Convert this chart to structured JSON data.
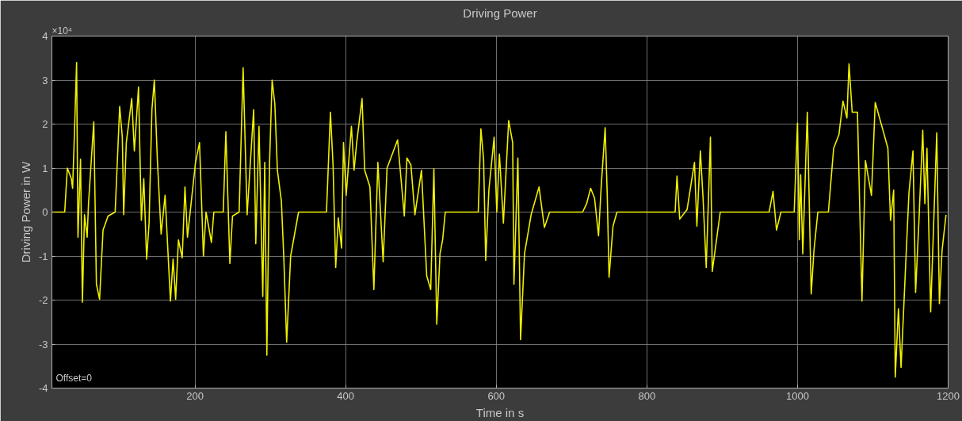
{
  "chart_data": {
    "type": "line",
    "title": "Driving Power",
    "xlabel": "Time in s",
    "ylabel": "Driving Power in W",
    "annotations": [
      "×10⁴",
      "Offset=0"
    ],
    "xlim": [
      10,
      1200
    ],
    "xticks": [
      200,
      400,
      600,
      800,
      1000,
      1200
    ],
    "ylim": [
      -4,
      4
    ],
    "yticks": [
      -4,
      -3,
      -2,
      -1,
      0,
      1,
      2,
      3,
      4
    ],
    "grid": true,
    "marker": "none",
    "line_style": "solid",
    "series": [
      {
        "color": "#f0f000",
        "x": [
          10,
          27,
          30.5,
          35.8,
          37.5,
          39.3,
          42.8,
          44.6,
          48,
          50.5,
          53.3,
          56.8,
          58.6,
          65.6,
          69.1,
          73.3,
          77.9,
          84.6,
          94,
          100,
          103.5,
          105.3,
          108.8,
          116,
          119.5,
          125,
          128.8,
          132,
          135.8,
          139,
          142.8,
          146,
          150,
          155,
          160.3,
          167.4,
          170.9,
          174.3,
          178,
          183,
          186.7,
          190,
          200.7,
          206,
          211.2,
          214.7,
          221.8,
          225,
          237.5,
          241,
          246.3,
          249.8,
          258.6,
          263.9,
          269.2,
          277.9,
          280.7,
          285,
          290,
          292.6,
          295.4,
          299,
          302.4,
          306,
          309.4,
          314.7,
          318,
          321.7,
          327,
          337.5,
          374.6,
          379.8,
          383.3,
          386.8,
          390.3,
          394.6,
          397.2,
          400.7,
          407.7,
          411.2,
          414.7,
          421.8,
          425.3,
          432.3,
          437.5,
          442.8,
          449.8,
          455,
          462,
          469,
          477.9,
          481.4,
          486.7,
          492,
          500.7,
          507.7,
          513,
          517.2,
          521,
          525.3,
          528.8,
          532.3,
          576.1,
          579.6,
          583.2,
          586,
          590.2,
          597.2,
          600.7,
          604.2,
          609.5,
          616.5,
          621.8,
          623.5,
          628.7,
          632.3,
          637.5,
          646.3,
          656.8,
          663.9,
          670.9,
          714.7,
          720,
          725.3,
          730.5,
          735.8,
          739.3,
          744.6,
          747.4,
          749.8,
          755,
          760.3,
          837.5,
          840,
          843.6,
          853.4,
          858.6,
          863.2,
          866.4,
          871,
          874.6,
          878.8,
          884.4,
          886.8,
          897.4,
          962.3,
          967.5,
          972.1,
          978,
          995.6,
          1000,
          1002.4,
          1004.2,
          1007,
          1013,
          1018.2,
          1021.8,
          1027,
          1041,
          1048,
          1055,
          1060.4,
          1065.6,
          1068.4,
          1072.6,
          1079.6,
          1085.6,
          1090.2,
          1098.2,
          1103.2,
          1113,
          1120,
          1123.5,
          1127.7,
          1129.8,
          1134,
          1137.5,
          1144.6,
          1148,
          1153.3,
          1156.8,
          1161.4,
          1166.3,
          1169.1,
          1171.9,
          1176.8,
          1184.9,
          1188.4,
          1191.9,
          1197.2
        ],
        "values": [
          0,
          0,
          1.0,
          0.76,
          0.54,
          1.45,
          3.4,
          -0.57,
          1.2,
          -2.05,
          -0.06,
          -0.57,
          0.19,
          2.05,
          -1.64,
          -1.98,
          -0.41,
          -0.09,
          0,
          2.4,
          1.7,
          -0.06,
          1.58,
          2.58,
          1.39,
          2.84,
          -0.19,
          0.76,
          -1.07,
          -0.25,
          2.33,
          3.0,
          1.2,
          -0.5,
          0.38,
          -2.02,
          -1.07,
          -1.98,
          -0.63,
          -1.04,
          0.57,
          -0.57,
          1.13,
          1.58,
          -1.0,
          0,
          -0.69,
          0,
          0,
          1.83,
          -1.17,
          -0.09,
          0,
          3.28,
          -0.06,
          2.33,
          -0.72,
          1.95,
          -1.92,
          1.13,
          -3.25,
          1.13,
          3.0,
          2.46,
          0.95,
          0.25,
          -1.07,
          -2.96,
          -1.0,
          0,
          0,
          2.27,
          1.07,
          -1.26,
          -0.13,
          -0.82,
          1.58,
          0.38,
          1.95,
          0.95,
          1.58,
          2.58,
          0.95,
          0.57,
          -1.76,
          1.13,
          -1.13,
          1.0,
          1.32,
          1.64,
          -0.09,
          1.23,
          1.07,
          -0.06,
          0.95,
          -1.45,
          -1.76,
          0.98,
          -2.55,
          -0.95,
          -0.63,
          0,
          0,
          1.89,
          1.2,
          -1.1,
          0.5,
          1.7,
          0,
          1.32,
          -0.25,
          2.08,
          1.58,
          -1.64,
          1.23,
          -2.9,
          -0.95,
          -0.06,
          0.57,
          -0.35,
          0,
          0,
          0.19,
          0.54,
          0.32,
          -0.54,
          0.57,
          1.92,
          0.38,
          -1.48,
          -0.32,
          0,
          0,
          0.82,
          -0.16,
          0.06,
          0.63,
          1.13,
          -0.32,
          1.39,
          0.32,
          -1.26,
          1.7,
          -1.35,
          0,
          0,
          0.47,
          -0.41,
          0,
          0,
          2.02,
          -0.63,
          0.85,
          -0.95,
          2.27,
          -1.86,
          -0.88,
          0,
          0,
          1.45,
          1.76,
          2.52,
          2.14,
          3.37,
          2.27,
          2.27,
          -2.02,
          1.17,
          0.38,
          2.49,
          1.89,
          1.45,
          -0.19,
          0.5,
          -3.75,
          -2.2,
          -3.53,
          -0.82,
          0.44,
          1.39,
          -1.83,
          -0.13,
          1.86,
          0.19,
          1.45,
          -2.27,
          1.8,
          -2.08,
          -0.88,
          -0.06
        ]
      }
    ]
  }
}
